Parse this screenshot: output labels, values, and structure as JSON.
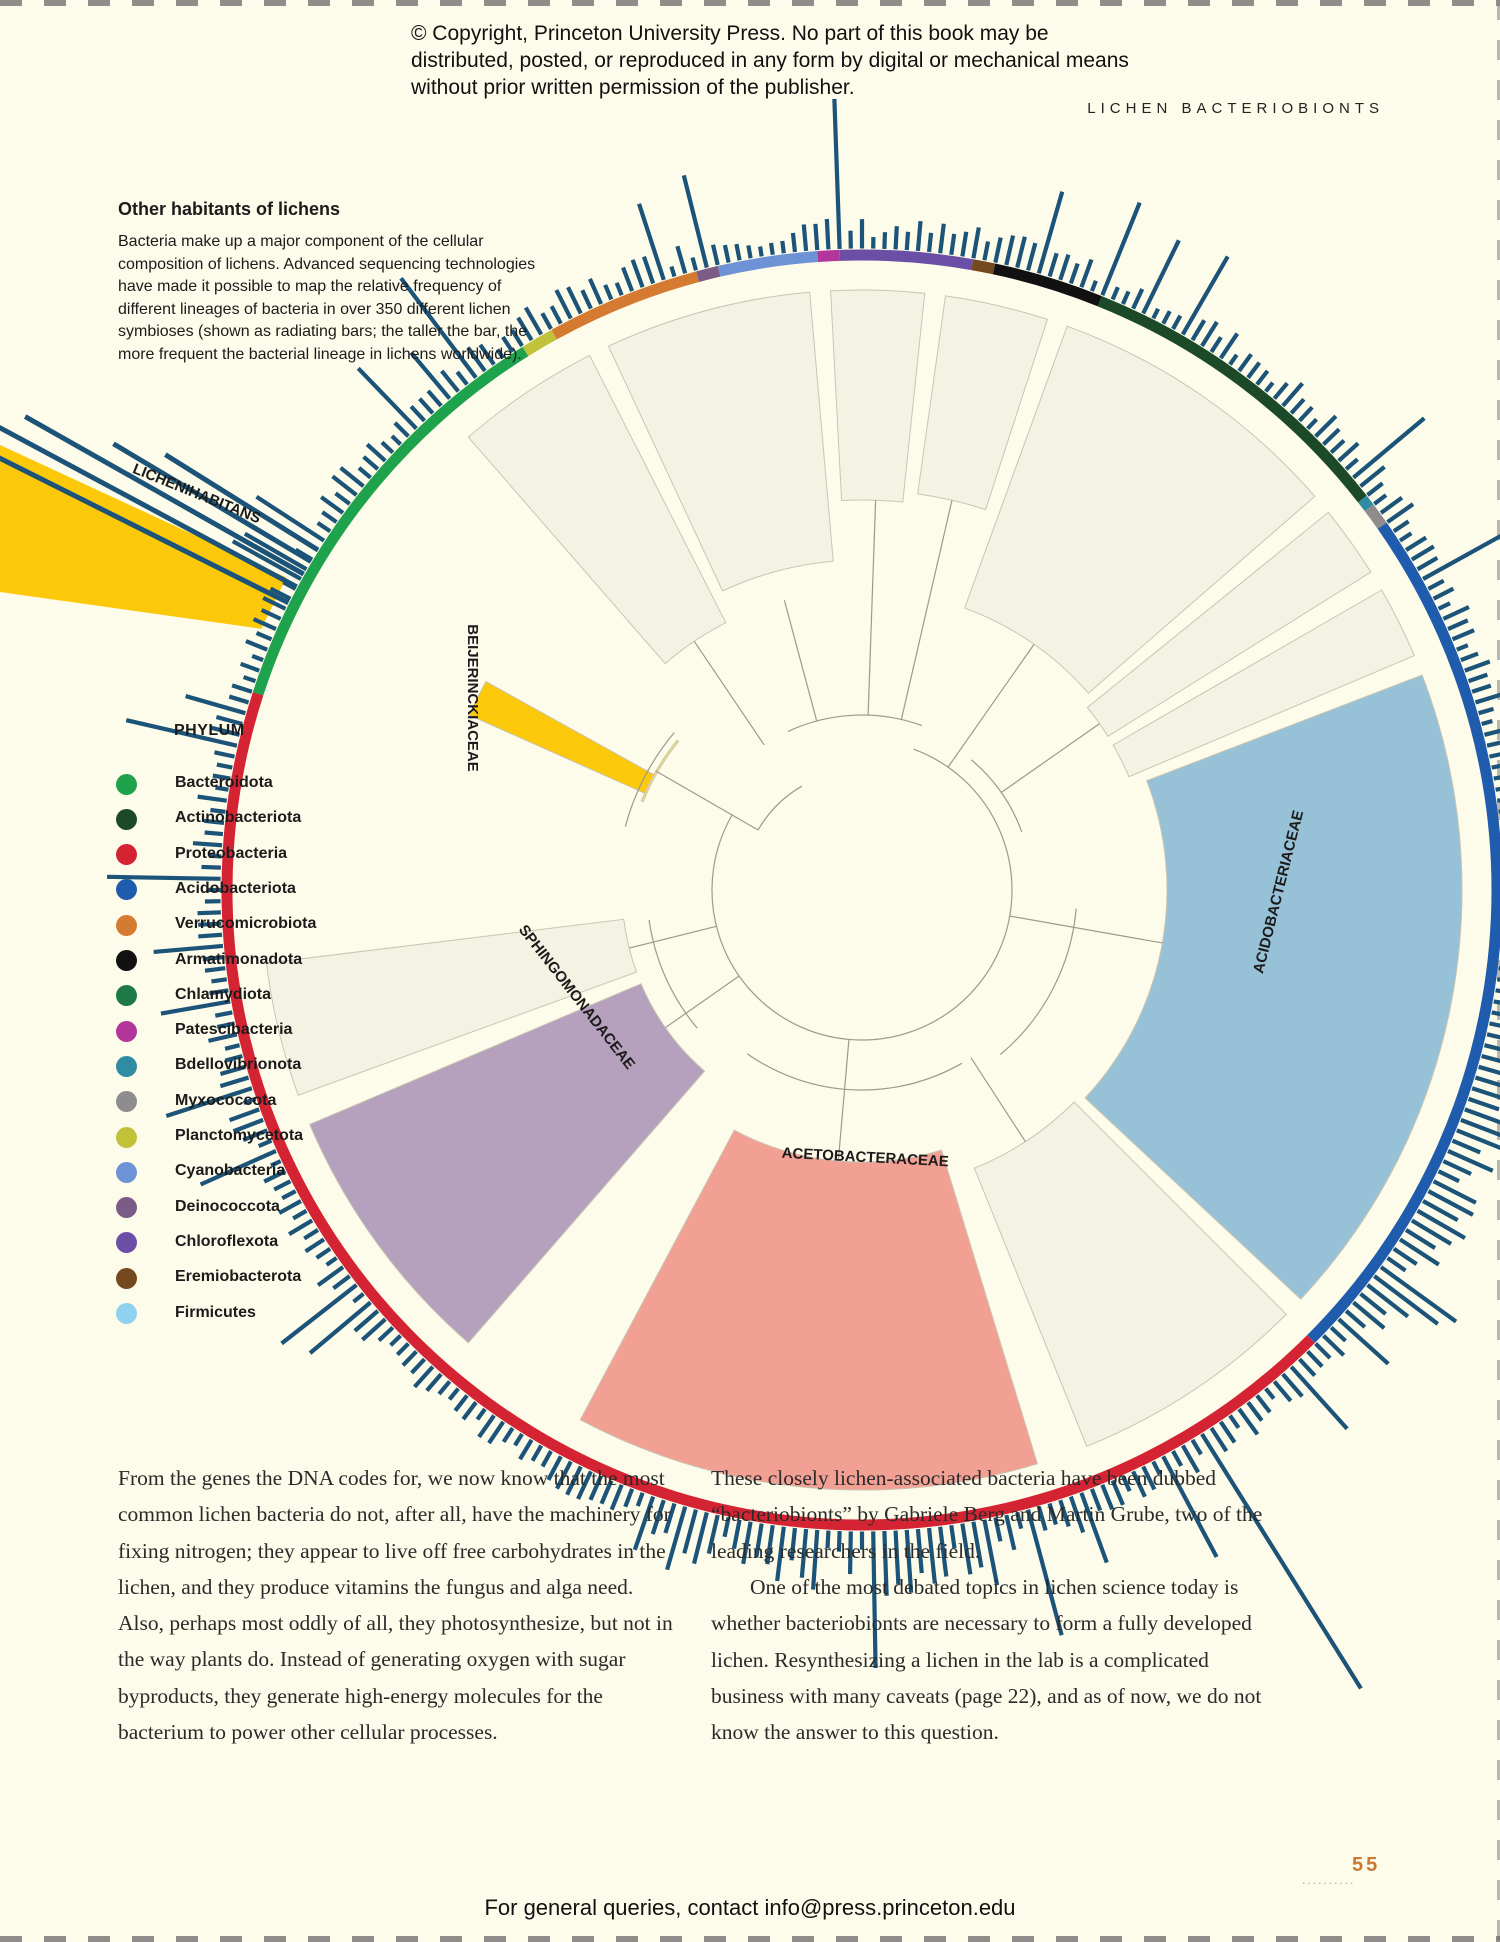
{
  "header": {
    "copyright": "© Copyright, Princeton University Press. No part of this book may be distributed, posted, or reproduced in any form by digital or mechanical means without prior written permission of the publisher.",
    "running_head": "LICHEN BACTERIOBIONTS"
  },
  "sidebar": {
    "title": "Other habitants of lichens",
    "body": "Bacteria make up a major component of the cellular composition of lichens. Advanced sequencing technologies have made it possible to map the relative frequency of different lineages of bacteria in over 350 different lichen symbioses (shown as radiating bars; the taller the bar, the more frequent the bacterial lineage in lichens worldwide)."
  },
  "legend": {
    "title": "PHYLUM",
    "items": [
      {
        "label": "Bacteroidota",
        "color": "#1fa24c"
      },
      {
        "label": "Actinobacteriota",
        "color": "#1c4a28"
      },
      {
        "label": "Proteobacteria",
        "color": "#d42433"
      },
      {
        "label": "Acidobacteriota",
        "color": "#1f5cae"
      },
      {
        "label": "Verrucomicrobiota",
        "color": "#d57b31"
      },
      {
        "label": "Armatimonadota",
        "color": "#111111"
      },
      {
        "label": "Chlamydiota",
        "color": "#1d7a44"
      },
      {
        "label": "Patescibacteria",
        "color": "#b3359c"
      },
      {
        "label": "Bdellovibrionota",
        "color": "#2f8ca3"
      },
      {
        "label": "Myxococcota",
        "color": "#8d8d8d"
      },
      {
        "label": "Planctomycetota",
        "color": "#c2c23a"
      },
      {
        "label": "Cyanobacteria",
        "color": "#6d93d6"
      },
      {
        "label": "Deinococcota",
        "color": "#7a5c86"
      },
      {
        "label": "Chloroflexota",
        "color": "#6b4fa6"
      },
      {
        "label": "Eremiobacterota",
        "color": "#74491f"
      },
      {
        "label": "Firmicutes",
        "color": "#8ed2ef"
      }
    ]
  },
  "tree": {
    "clade_labels": {
      "lichenihabitans": "LICHENIHABITANS",
      "beijerinckiaceae": "BEIJERINCKIACEAE",
      "sphingomonadaceae": "SPHINGOMONADACEAE",
      "acetobacteraceae": "ACETOBACTERACEAE",
      "acidobacteriaceae": "ACIDOBACTERIACEAE"
    },
    "clade_colors": {
      "beijerinckiaceae": "#f5e074",
      "lichenihabitans": "#fcc80a",
      "sphingomonadaceae": "#b5a0bd",
      "acetobacteraceae": "#f3a094",
      "acidobacteriaceae": "#97c1d6",
      "unlabeled": "#f4f2e3"
    },
    "bar_color": "#1c5378"
  },
  "body_text": {
    "left": "From the genes the DNA codes for, we now know that the most common lichen bacteria do not, after all, have the machinery for fixing nitrogen; they appear to live off free carbohydrates in the lichen, and they produce vitamins the fungus and alga need. Also, perhaps most oddly of all, they photosynthesize, but not in the way plants do. Instead of generating oxygen with sugar byproducts, they generate high-energy molecules for the bacterium to power other cellular processes.",
    "right_1": "These closely lichen-associated bacteria have been dubbed “bacteriobionts” by Gabriele Berg and Martin Grube, two of the leading researchers in the field.",
    "right_2": "One of the most debated topics in lichen science today is whether bacteriobionts are necessary to form a fully developed lichen. Resynthesizing a lichen in the lab is a complicated business with many caveats (page 22), and as of now, we do not know the answer to this question."
  },
  "footer": {
    "page_number": "55",
    "dots": "..........",
    "contact": "For general queries, contact info@press.princeton.edu"
  }
}
